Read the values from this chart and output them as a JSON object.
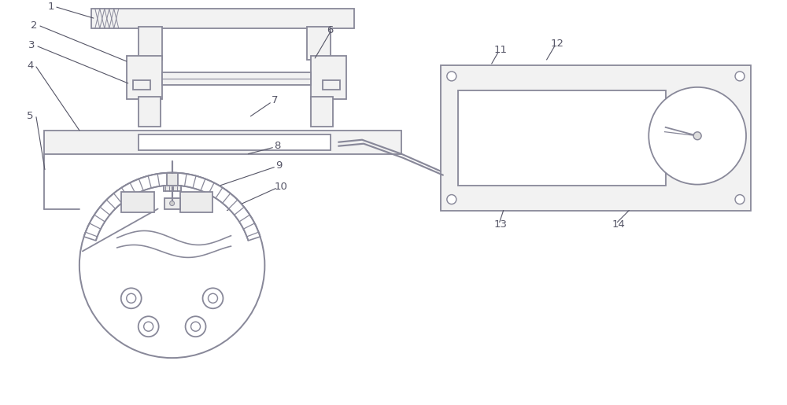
{
  "bg_color": "#ffffff",
  "line_color": "#888899",
  "line_width": 1.3,
  "label_color": "#555566",
  "label_fontsize": 9.5,
  "fig_width": 10.0,
  "fig_height": 5.15
}
